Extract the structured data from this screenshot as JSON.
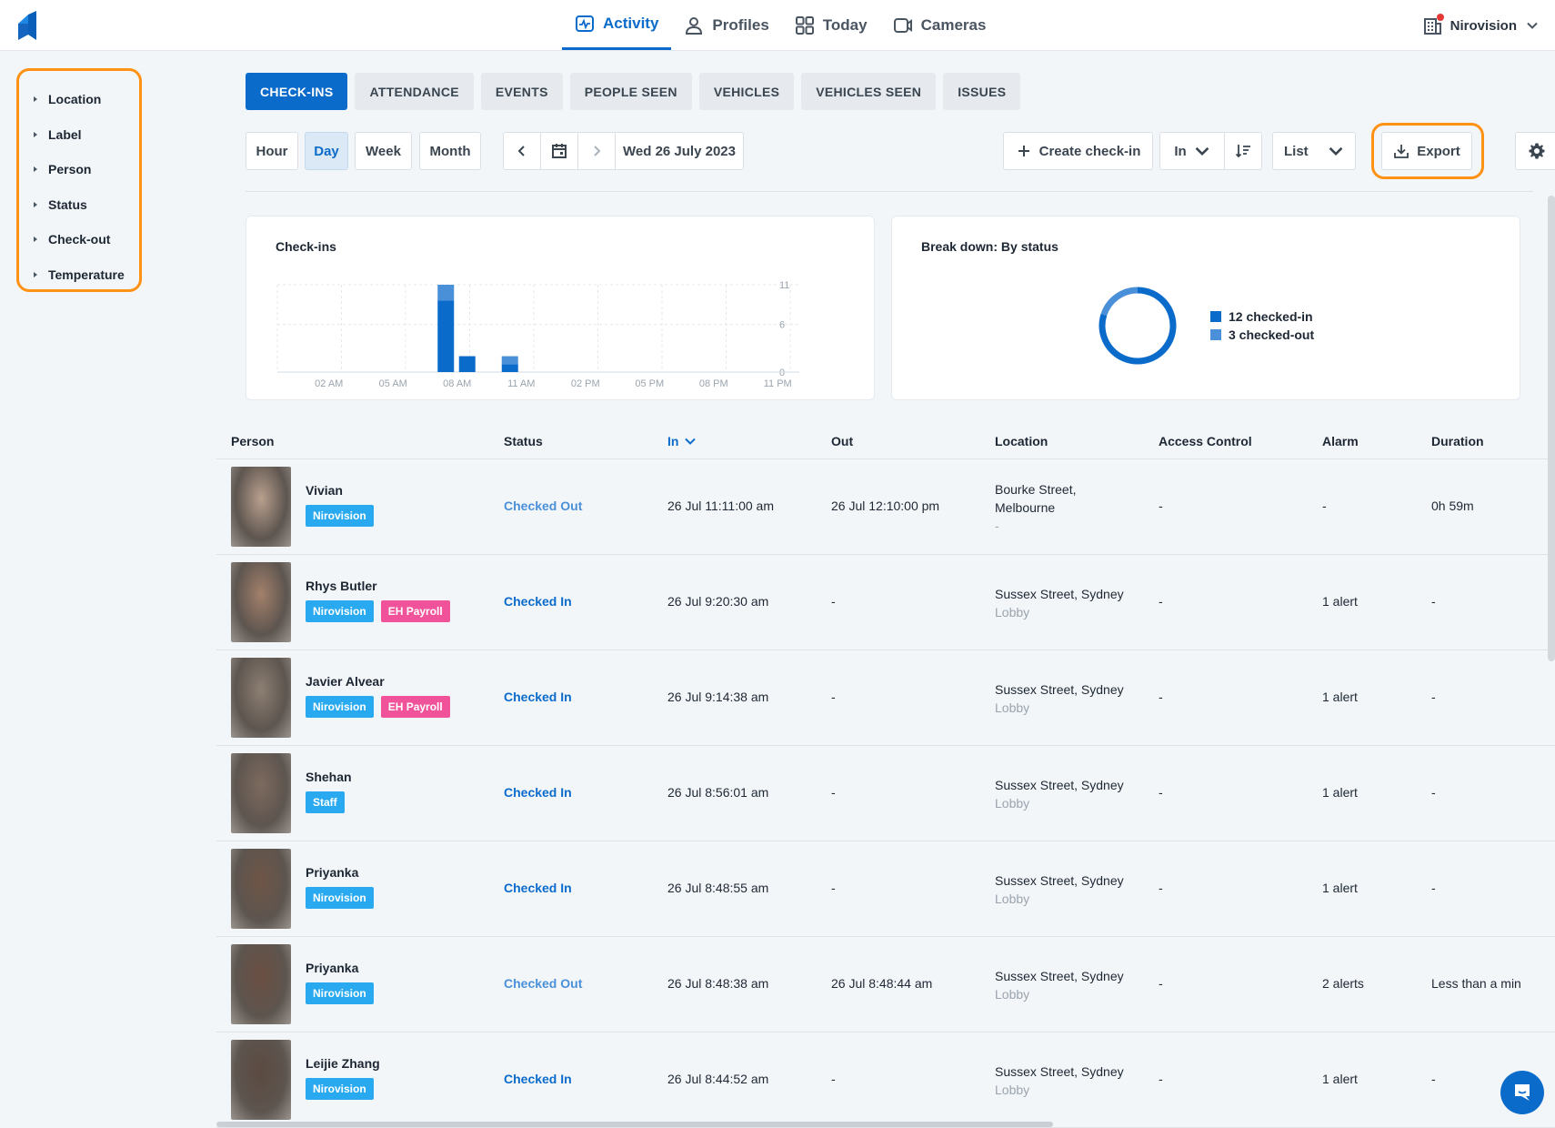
{
  "nav": {
    "items": [
      {
        "label": "Activity",
        "icon": "activity-icon",
        "active": true
      },
      {
        "label": "Profiles",
        "icon": "person-icon",
        "active": false
      },
      {
        "label": "Today",
        "icon": "grid-icon",
        "active": false
      },
      {
        "label": "Cameras",
        "icon": "camera-icon",
        "active": false
      }
    ],
    "org_name": "Nirovision"
  },
  "filters": [
    "Location",
    "Label",
    "Person",
    "Status",
    "Check-out",
    "Temperature"
  ],
  "tabs": [
    "CHECK-INS",
    "ATTENDANCE",
    "EVENTS",
    "PEOPLE SEEN",
    "VEHICLES",
    "VEHICLES SEEN",
    "ISSUES"
  ],
  "toolbar": {
    "ranges": [
      "Hour",
      "Day",
      "Week",
      "Month"
    ],
    "selected_range": "Day",
    "date": "Wed 26 July 2023",
    "create_label": "Create check-in",
    "sort_field": "In",
    "view_mode": "List",
    "export_label": "Export"
  },
  "checkins_card": {
    "title": "Check-ins"
  },
  "breakdown_card": {
    "title": "Break down: By status",
    "legend": [
      "12 checked-in",
      "3 checked-out"
    ]
  },
  "chart_data": [
    {
      "type": "bar",
      "title": "Check-ins",
      "x_ticks": [
        "02 AM",
        "05 AM",
        "08 AM",
        "11 AM",
        "02 PM",
        "05 PM",
        "08 PM",
        "11 PM"
      ],
      "y_ticks": [
        0,
        6,
        11
      ],
      "ylim": [
        0,
        11
      ],
      "series": [
        {
          "name": "checked-in",
          "color": "#0b6bcb",
          "hours": [
            8,
            9,
            11
          ],
          "values": [
            9,
            2,
            1
          ]
        },
        {
          "name": "checked-out",
          "color": "#4a90d9",
          "hours": [
            8,
            9,
            11
          ],
          "values": [
            2,
            0,
            1
          ]
        }
      ]
    },
    {
      "type": "pie",
      "title": "Break down: By status",
      "labels": [
        "checked-in",
        "checked-out"
      ],
      "values": [
        12,
        3
      ],
      "colors": [
        "#0b6bcb",
        "#4a90d9"
      ]
    }
  ],
  "table": {
    "headers": [
      "Person",
      "Status",
      "In",
      "Out",
      "Location",
      "Access Control",
      "Alarm",
      "Duration"
    ],
    "rows": [
      {
        "name": "Vivian",
        "badges": [
          "Nirovision"
        ],
        "status": "Checked Out",
        "in": "26 Jul 11:11:00 am",
        "out": "26 Jul 12:10:00 pm",
        "loc1": "Bourke Street,",
        "loc2": "Melbourne",
        "loc3": "-",
        "access": "-",
        "alarm": "-",
        "duration": "0h 59m"
      },
      {
        "name": "Rhys Butler",
        "badges": [
          "Nirovision",
          "EH Payroll"
        ],
        "status": "Checked In",
        "in": "26 Jul 9:20:30 am",
        "out": "-",
        "loc1": "Sussex Street, Sydney",
        "loc2": "Lobby",
        "loc3": "",
        "access": "-",
        "alarm": "1 alert",
        "duration": "-"
      },
      {
        "name": "Javier Alvear",
        "badges": [
          "Nirovision",
          "EH Payroll"
        ],
        "status": "Checked In",
        "in": "26 Jul 9:14:38 am",
        "out": "-",
        "loc1": "Sussex Street, Sydney",
        "loc2": "Lobby",
        "loc3": "",
        "access": "-",
        "alarm": "1 alert",
        "duration": "-"
      },
      {
        "name": "Shehan",
        "badges": [
          "Staff"
        ],
        "status": "Checked In",
        "in": "26 Jul 8:56:01 am",
        "out": "-",
        "loc1": "Sussex Street, Sydney",
        "loc2": "Lobby",
        "loc3": "",
        "access": "-",
        "alarm": "1 alert",
        "duration": "-"
      },
      {
        "name": "Priyanka",
        "badges": [
          "Nirovision"
        ],
        "status": "Checked In",
        "in": "26 Jul 8:48:55 am",
        "out": "-",
        "loc1": "Sussex Street, Sydney",
        "loc2": "Lobby",
        "loc3": "",
        "access": "-",
        "alarm": "1 alert",
        "duration": "-"
      },
      {
        "name": "Priyanka",
        "badges": [
          "Nirovision"
        ],
        "status": "Checked Out",
        "in": "26 Jul 8:48:38 am",
        "out": "26 Jul 8:48:44 am",
        "loc1": "Sussex Street, Sydney",
        "loc2": "Lobby",
        "loc3": "",
        "access": "-",
        "alarm": "2 alerts",
        "duration": "Less than a min"
      },
      {
        "name": "Leijie Zhang",
        "badges": [
          "Nirovision"
        ],
        "status": "Checked In",
        "in": "26 Jul 8:44:52 am",
        "out": "-",
        "loc1": "Sussex Street, Sydney",
        "loc2": "Lobby",
        "loc3": "",
        "access": "-",
        "alarm": "1 alert",
        "duration": "-"
      }
    ]
  },
  "colors": {
    "accent": "#0b6bcb",
    "checked_out": "#4a90d9",
    "badge_blue": "#29aaf0",
    "badge_pink": "#f0539a",
    "highlight": "#ff9114"
  }
}
